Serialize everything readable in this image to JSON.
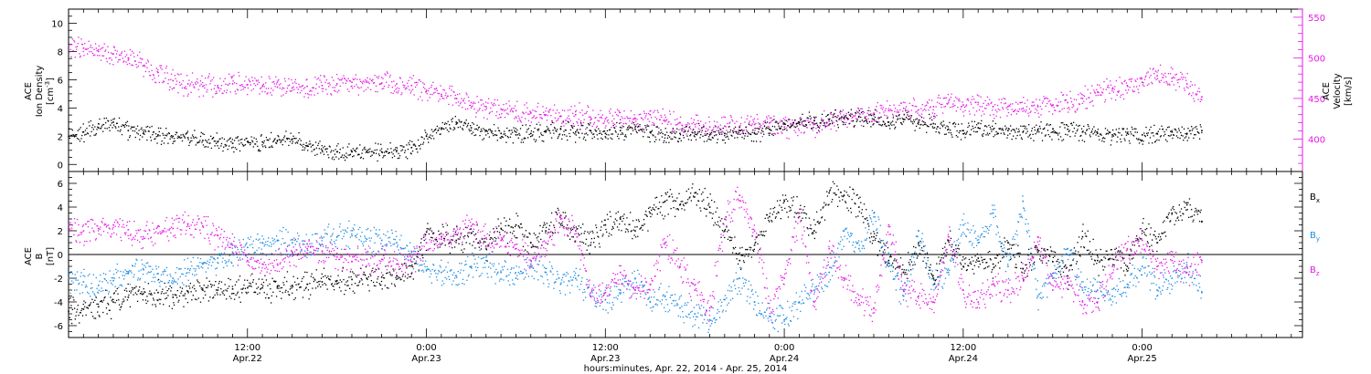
{
  "colors": {
    "black": "#000000",
    "magenta": "#e619e6",
    "blue": "#1e8ce1"
  },
  "time_axis": {
    "range_hours": [
      0,
      82.75
    ],
    "ticks": [
      {
        "hour": 12,
        "time": "12:00",
        "date": "Apr.22"
      },
      {
        "hour": 24,
        "time": "0:00",
        "date": "Apr.23"
      },
      {
        "hour": 36,
        "time": "12:00",
        "date": "Apr.23"
      },
      {
        "hour": 48,
        "time": "0:00",
        "date": "Apr.24"
      },
      {
        "hour": 60,
        "time": "12:00",
        "date": "Apr.24"
      },
      {
        "hour": 72,
        "time": "0:00",
        "date": "Apr.25"
      }
    ],
    "label": "hours:minutes, Apr. 22, 2014 - Apr. 25, 2014"
  },
  "panel1": {
    "left_label": [
      "ACE",
      "Ion Density",
      "[cm",
      "-3",
      "]"
    ],
    "right_label": [
      "ACE",
      "Velocity",
      "[km/s]"
    ],
    "left_ylim": [
      -0.5,
      11
    ],
    "left_ticks": [
      "0",
      "2",
      "4",
      "6",
      "8",
      "10"
    ],
    "right_ylim": [
      360,
      560
    ],
    "right_ticks": [
      "400",
      "450",
      "500",
      "550"
    ]
  },
  "panel2": {
    "left_label": [
      "ACE",
      "B",
      "[nT]"
    ],
    "ylim": [
      -7,
      7
    ],
    "ticks": [
      "-6",
      "-4",
      "-2",
      "0",
      "2",
      "4",
      "6"
    ],
    "legend": [
      {
        "base": "B",
        "sub": "x",
        "color": "#000000"
      },
      {
        "base": "B",
        "sub": "y",
        "color": "#1e8ce1"
      },
      {
        "base": "B",
        "sub": "z",
        "color": "#e619e6"
      }
    ]
  },
  "chart_data": [
    {
      "type": "scatter",
      "xlabel": "hours:minutes, Apr. 22, 2014 - Apr. 25, 2014",
      "ylabel": "ACE Ion Density [cm-3]",
      "ylabel_right": "ACE Velocity [km/s]",
      "ylim": [
        -0.5,
        11
      ],
      "ylim_right": [
        360,
        560
      ],
      "series": [
        {
          "name": "Ion Density",
          "color": "#000000",
          "axis": "left",
          "x": [
            0,
            1,
            2,
            3,
            4,
            5,
            6,
            7,
            8,
            9,
            10,
            11,
            12,
            13,
            14,
            15,
            16,
            17,
            18,
            19,
            20,
            21,
            22,
            23,
            24,
            25,
            26,
            27,
            28,
            29,
            30,
            31,
            32,
            33,
            34,
            35,
            36,
            37,
            38,
            39,
            40,
            41,
            42,
            43,
            44,
            45,
            46,
            47,
            48,
            49,
            50,
            51,
            52,
            53,
            54,
            55,
            56,
            57,
            58,
            59,
            60,
            61,
            62,
            63,
            64,
            65,
            66,
            67,
            68,
            69,
            70,
            71,
            72,
            73,
            74,
            75,
            76
          ],
          "y": [
            2.0,
            2.3,
            2.6,
            3.0,
            2.4,
            2.2,
            2.1,
            2.0,
            1.9,
            1.7,
            1.6,
            1.5,
            1.6,
            1.6,
            1.7,
            1.8,
            1.3,
            1.0,
            0.9,
            0.9,
            0.9,
            0.9,
            1.0,
            1.2,
            2.0,
            2.5,
            3.0,
            2.6,
            2.4,
            2.2,
            2.1,
            2.2,
            2.3,
            2.5,
            2.3,
            2.4,
            2.2,
            2.4,
            2.5,
            2.3,
            2.1,
            2.2,
            2.3,
            2.1,
            2.2,
            2.4,
            2.2,
            2.5,
            2.9,
            3.0,
            3.1,
            3.2,
            3.3,
            3.4,
            3.2,
            3.0,
            3.2,
            3.0,
            2.9,
            2.5,
            2.4,
            2.6,
            2.5,
            2.4,
            2.3,
            2.4,
            2.3,
            2.5,
            2.3,
            2.2,
            2.1,
            2.2,
            2.1,
            2.2,
            2.3,
            2.2,
            2.4
          ]
        },
        {
          "name": "Velocity",
          "color": "#e619e6",
          "axis": "right",
          "x": [
            0,
            1,
            2,
            3,
            4,
            5,
            6,
            7,
            8,
            9,
            10,
            11,
            12,
            13,
            14,
            15,
            16,
            17,
            18,
            19,
            20,
            21,
            22,
            23,
            24,
            25,
            26,
            27,
            28,
            29,
            30,
            31,
            32,
            33,
            34,
            35,
            36,
            37,
            38,
            39,
            40,
            41,
            42,
            43,
            44,
            45,
            46,
            47,
            48,
            49,
            50,
            51,
            52,
            53,
            54,
            55,
            56,
            57,
            58,
            59,
            60,
            61,
            62,
            63,
            64,
            65,
            66,
            67,
            68,
            69,
            70,
            71,
            72,
            73,
            74,
            75,
            76
          ],
          "y": [
            515,
            512,
            508,
            505,
            500,
            490,
            482,
            472,
            468,
            465,
            466,
            468,
            467,
            465,
            464,
            463,
            465,
            466,
            468,
            470,
            470,
            469,
            468,
            466,
            460,
            455,
            450,
            445,
            440,
            437,
            435,
            432,
            430,
            428,
            430,
            427,
            425,
            424,
            425,
            430,
            422,
            420,
            418,
            415,
            416,
            415,
            418,
            420,
            415,
            420,
            418,
            422,
            425,
            428,
            432,
            435,
            438,
            436,
            440,
            445,
            442,
            445,
            440,
            440,
            438,
            440,
            442,
            445,
            450,
            458,
            462,
            466,
            470,
            478,
            475,
            468,
            452
          ]
        }
      ]
    },
    {
      "type": "scatter",
      "xlabel": "hours:minutes, Apr. 22, 2014 - Apr. 25, 2014",
      "ylabel": "ACE B [nT]",
      "ylim": [
        -7,
        7
      ],
      "series": [
        {
          "name": "Bx",
          "color": "#000000",
          "x": [
            0,
            1,
            2,
            3,
            4,
            5,
            6,
            7,
            8,
            9,
            10,
            11,
            12,
            13,
            14,
            15,
            16,
            17,
            18,
            19,
            20,
            21,
            22,
            23,
            24,
            25,
            26,
            27,
            28,
            29,
            30,
            31,
            32,
            33,
            34,
            35,
            36,
            37,
            38,
            39,
            40,
            41,
            42,
            43,
            44,
            45,
            46,
            47,
            48,
            49,
            50,
            51,
            52,
            53,
            54,
            55,
            56,
            57,
            58,
            59,
            60,
            61,
            62,
            63,
            64,
            65,
            66,
            67,
            68,
            69,
            70,
            71,
            72,
            73,
            74,
            75,
            76
          ],
          "y": [
            -4.8,
            -4.6,
            -4.4,
            -4.0,
            -3.6,
            -3.3,
            -3.2,
            -3.6,
            -3.1,
            -3.0,
            -3.0,
            -2.9,
            -2.8,
            -2.8,
            -2.7,
            -2.6,
            -2.5,
            -2.3,
            -2.2,
            -2.1,
            -2.0,
            -1.9,
            -1.8,
            -1.6,
            1.9,
            1.5,
            1.2,
            1.8,
            0.5,
            2.2,
            2.5,
            1.0,
            2.0,
            3.3,
            2.0,
            0.8,
            2.5,
            3.0,
            2.0,
            3.5,
            4.5,
            4.2,
            5.2,
            4.0,
            2.0,
            -0.5,
            0.8,
            3.2,
            4.5,
            3.5,
            2.0,
            5.2,
            5.0,
            4.0,
            1.5,
            -0.5,
            -1.5,
            1.0,
            -2.0,
            1.2,
            -1.0,
            -0.3,
            -0.8,
            1.0,
            -1.2,
            0.2,
            -0.6,
            -1.8,
            1.5,
            -0.5,
            0.0,
            -1.0,
            2.0,
            1.0,
            3.5,
            4.2,
            2.8
          ]
        },
        {
          "name": "By",
          "color": "#1e8ce1",
          "x": [
            0,
            1,
            2,
            3,
            4,
            5,
            6,
            7,
            8,
            9,
            10,
            11,
            12,
            13,
            14,
            15,
            16,
            17,
            18,
            19,
            20,
            21,
            22,
            23,
            24,
            25,
            26,
            27,
            28,
            29,
            30,
            31,
            32,
            33,
            34,
            35,
            36,
            37,
            38,
            39,
            40,
            41,
            42,
            43,
            44,
            45,
            46,
            47,
            48,
            49,
            50,
            51,
            52,
            53,
            54,
            55,
            56,
            57,
            58,
            59,
            60,
            61,
            62,
            63,
            64,
            65,
            66,
            67,
            68,
            69,
            70,
            71,
            72,
            73,
            74,
            75,
            76
          ],
          "y": [
            -2.0,
            -2.3,
            -2.6,
            -2.2,
            -1.6,
            -1.2,
            -1.6,
            -2.0,
            -1.2,
            -0.8,
            -0.3,
            0.2,
            0.6,
            1.0,
            1.2,
            1.0,
            0.9,
            1.4,
            1.5,
            1.6,
            1.3,
            1.2,
            1.0,
            0.2,
            -1.3,
            -1.5,
            -1.8,
            -1.0,
            -0.5,
            -1.5,
            -2.0,
            -0.8,
            -1.5,
            -2.5,
            -2.0,
            -3.5,
            -3.8,
            -3.0,
            -2.0,
            -4.0,
            -3.5,
            -4.5,
            -5.0,
            -5.5,
            -3.8,
            -2.0,
            -4.0,
            -5.2,
            -5.5,
            -4.0,
            -3.0,
            -1.5,
            2.0,
            0.5,
            3.5,
            -1.0,
            -3.5,
            2.0,
            -2.5,
            -1.5,
            2.5,
            1.0,
            3.5,
            -1.0,
            4.5,
            -3.5,
            -2.0,
            0.5,
            -3.0,
            -3.0,
            -3.5,
            -2.5,
            -1.0,
            -3.0,
            -2.0,
            -1.0,
            -3.2
          ]
        },
        {
          "name": "Bz",
          "color": "#e619e6",
          "x": [
            0,
            1,
            2,
            3,
            4,
            5,
            6,
            7,
            8,
            9,
            10,
            11,
            12,
            13,
            14,
            15,
            16,
            17,
            18,
            19,
            20,
            21,
            22,
            23,
            24,
            25,
            26,
            27,
            28,
            29,
            30,
            31,
            32,
            33,
            34,
            35,
            36,
            37,
            38,
            39,
            40,
            41,
            42,
            43,
            44,
            45,
            46,
            47,
            48,
            49,
            50,
            51,
            52,
            53,
            54,
            55,
            56,
            57,
            58,
            59,
            60,
            61,
            62,
            63,
            64,
            65,
            66,
            67,
            68,
            69,
            70,
            71,
            72,
            73,
            74,
            75,
            76
          ],
          "y": [
            2.5,
            2.0,
            2.2,
            2.5,
            2.1,
            1.5,
            1.8,
            2.2,
            2.6,
            2.4,
            1.6,
            0.8,
            -0.5,
            -0.8,
            -0.8,
            0.2,
            0.5,
            0.3,
            -0.2,
            -0.6,
            -0.4,
            -0.4,
            -0.8,
            -0.6,
            1.0,
            1.3,
            1.7,
            2.4,
            1.4,
            1.2,
            0.5,
            -0.5,
            1.0,
            3.0,
            2.0,
            -3.5,
            -3.2,
            -1.5,
            -3.0,
            -2.5,
            1.0,
            -1.0,
            -3.0,
            -4.5,
            3.0,
            5.0,
            2.0,
            -4.5,
            -2.0,
            3.5,
            -4.0,
            0.5,
            -2.0,
            -3.8,
            -4.5,
            2.5,
            -3.0,
            -3.5,
            -4.0,
            1.5,
            -3.0,
            -4.0,
            -2.5,
            -3.0,
            -2.0,
            1.5,
            -3.0,
            -2.0,
            -4.0,
            -4.0,
            -1.0,
            0.5,
            1.2,
            -1.0,
            -0.5,
            -1.5,
            -0.5
          ]
        }
      ]
    }
  ]
}
